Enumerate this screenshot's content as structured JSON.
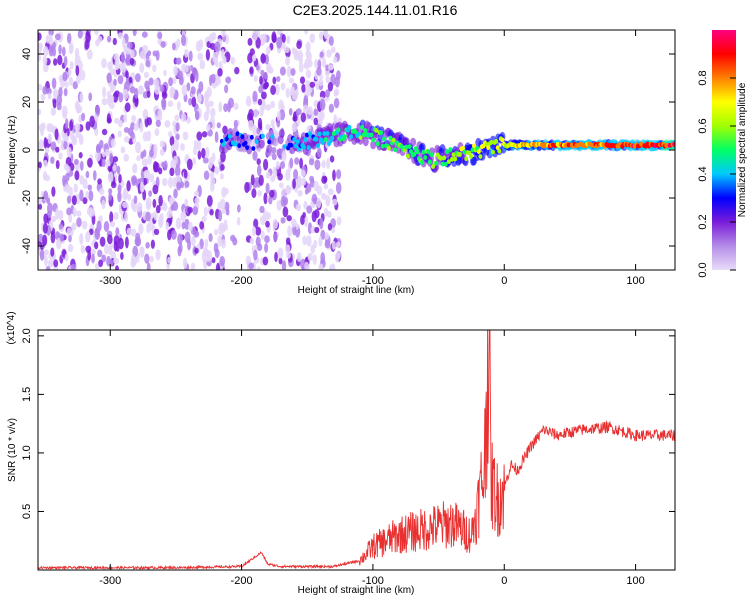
{
  "title": "C2E3.2025.144.11.01.R16",
  "chart_data": [
    {
      "type": "heatmap",
      "xlabel": "Height of straight line (km)",
      "ylabel": "Frequency (Hz)",
      "xlim": [
        -355,
        130
      ],
      "ylim": [
        -50,
        50
      ],
      "xticks": [
        -300,
        -200,
        -100,
        0,
        100
      ],
      "xtick_labels": [
        "-300",
        "-200",
        "-100",
        "0",
        "100"
      ],
      "yticks": [
        -40,
        -20,
        0,
        20,
        40
      ],
      "ytick_labels": [
        "-40",
        "-20",
        "0",
        "20",
        "40"
      ],
      "colorbar": {
        "label": "Normalized spectral amplitude",
        "range": [
          0,
          1
        ],
        "ticks": [
          0.0,
          0.2,
          0.4,
          0.6,
          0.8
        ],
        "tick_labels": [
          "0.0",
          "0.2",
          "0.4",
          "0.6",
          "0.8"
        ],
        "colors": [
          "#e8dcf8",
          "#b48ce8",
          "#7a1cd8",
          "#0000ff",
          "#00c8ff",
          "#00ff64",
          "#a0ff00",
          "#ffff00",
          "#ff8000",
          "#ff0000",
          "#ff0080"
        ]
      },
      "features": [
        {
          "name": "broadband noise",
          "x_range": [
            -355,
            -125
          ],
          "freq_range": [
            -50,
            50
          ],
          "amplitude": 0.15
        },
        {
          "name": "narrowband signal",
          "points": [
            {
              "x": -215,
              "freq": 4,
              "amplitude": 0.35
            },
            {
              "x": -155,
              "freq": 3,
              "amplitude": 0.35
            },
            {
              "x": -110,
              "freq": 8,
              "amplitude": 0.5
            },
            {
              "x": -80,
              "freq": 2,
              "amplitude": 0.55
            },
            {
              "x": -55,
              "freq": -4,
              "amplitude": 0.55
            },
            {
              "x": -35,
              "freq": -2,
              "amplitude": 0.6
            },
            {
              "x": 0,
              "freq": 2,
              "amplitude": 0.7
            },
            {
              "x": 50,
              "freq": 2,
              "amplitude": 0.85
            },
            {
              "x": 130,
              "freq": 2,
              "amplitude": 0.9
            }
          ]
        }
      ]
    },
    {
      "type": "line",
      "xlabel": "Height of straight line (km)",
      "ylabel": "SNR (10 * v/v)",
      "y_multiplier": "(x10^4)",
      "xlim": [
        -355,
        130
      ],
      "ylim": [
        0,
        2.05
      ],
      "xticks": [
        -300,
        -200,
        -100,
        0,
        100
      ],
      "xtick_labels": [
        "-300",
        "-200",
        "-100",
        "0",
        "100"
      ],
      "yticks": [
        0.5,
        1.0,
        1.5,
        2.0
      ],
      "ytick_labels": [
        "0.5",
        "1.0",
        "1.5",
        "2.0"
      ],
      "color": "#e83030",
      "x": [
        -355,
        -250,
        -200,
        -185,
        -180,
        -170,
        -130,
        -110,
        -100,
        -80,
        -60,
        -40,
        -25,
        -20,
        -15,
        -12,
        -10,
        -5,
        0,
        5,
        10,
        20,
        30,
        40,
        60,
        80,
        100,
        130
      ],
      "y": [
        0.02,
        0.02,
        0.03,
        0.15,
        0.05,
        0.03,
        0.03,
        0.08,
        0.2,
        0.3,
        0.35,
        0.4,
        0.3,
        0.55,
        0.9,
        2.05,
        0.75,
        0.6,
        0.7,
        0.9,
        0.85,
        1.05,
        1.2,
        1.15,
        1.2,
        1.22,
        1.15,
        1.15
      ]
    }
  ]
}
